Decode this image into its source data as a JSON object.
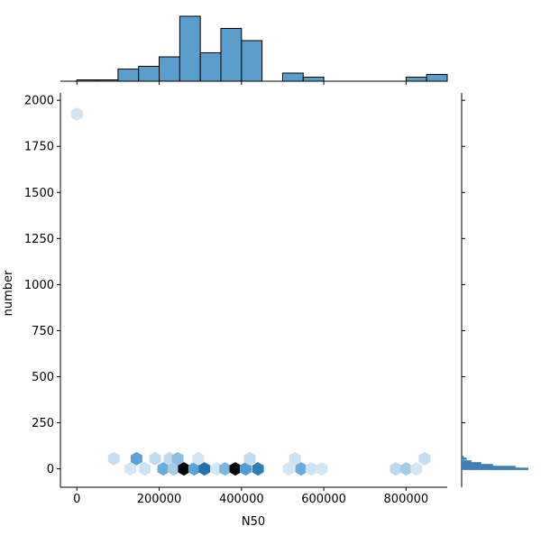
{
  "chart_data": {
    "type": "hexbin-jointplot",
    "xlabel": "N50",
    "ylabel": "number",
    "xlim": [
      -40000,
      900000
    ],
    "ylim": [
      -100,
      2040
    ],
    "x_ticks": [
      0,
      200000,
      400000,
      600000,
      800000
    ],
    "x_tick_labels": [
      "0",
      "200000",
      "400000",
      "600000",
      "800000"
    ],
    "y_ticks": [
      0,
      250,
      500,
      750,
      1000,
      1250,
      1500,
      1750,
      2000
    ],
    "y_tick_labels": [
      "0",
      "250",
      "500",
      "750",
      "1000",
      "1250",
      "1500",
      "1750",
      "2000"
    ],
    "grid": false,
    "hexbins": [
      {
        "x": 0,
        "y": 1925,
        "density": 0.08
      },
      {
        "x": 90000,
        "y": 55,
        "density": 0.12
      },
      {
        "x": 130000,
        "y": 0,
        "density": 0.08
      },
      {
        "x": 145000,
        "y": 55,
        "density": 0.45
      },
      {
        "x": 165000,
        "y": 0,
        "density": 0.1
      },
      {
        "x": 190000,
        "y": 55,
        "density": 0.14
      },
      {
        "x": 210000,
        "y": 0,
        "density": 0.4
      },
      {
        "x": 225000,
        "y": 55,
        "density": 0.14
      },
      {
        "x": 235000,
        "y": 0,
        "density": 0.22
      },
      {
        "x": 245000,
        "y": 55,
        "density": 0.3
      },
      {
        "x": 260000,
        "y": 0,
        "density": 1.0
      },
      {
        "x": 285000,
        "y": 0,
        "density": 0.45
      },
      {
        "x": 295000,
        "y": 55,
        "density": 0.08
      },
      {
        "x": 310000,
        "y": 0,
        "density": 0.88
      },
      {
        "x": 340000,
        "y": 0,
        "density": 0.08
      },
      {
        "x": 360000,
        "y": 0,
        "density": 0.35
      },
      {
        "x": 385000,
        "y": 0,
        "density": 1.0
      },
      {
        "x": 410000,
        "y": 0,
        "density": 0.5
      },
      {
        "x": 420000,
        "y": 55,
        "density": 0.14
      },
      {
        "x": 440000,
        "y": 0,
        "density": 0.78
      },
      {
        "x": 515000,
        "y": 0,
        "density": 0.08
      },
      {
        "x": 530000,
        "y": 55,
        "density": 0.1
      },
      {
        "x": 545000,
        "y": 0,
        "density": 0.4
      },
      {
        "x": 570000,
        "y": 0,
        "density": 0.1
      },
      {
        "x": 595000,
        "y": 0,
        "density": 0.08
      },
      {
        "x": 775000,
        "y": 0,
        "density": 0.16
      },
      {
        "x": 800000,
        "y": 0,
        "density": 0.22
      },
      {
        "x": 825000,
        "y": 0,
        "density": 0.08
      },
      {
        "x": 845000,
        "y": 55,
        "density": 0.12
      }
    ],
    "x_marginal_histogram": {
      "bin_start": 0,
      "bin_width": 50000,
      "counts": [
        1,
        1,
        9,
        11,
        18,
        48,
        21,
        39,
        30,
        0,
        6,
        3,
        0,
        0,
        0,
        0,
        3,
        5
      ]
    },
    "y_marginal_histogram": {
      "bins": [
        {
          "y": 0,
          "count": 68
        },
        {
          "y": 10,
          "count": 55
        },
        {
          "y": 20,
          "count": 32
        },
        {
          "y": 30,
          "count": 20
        },
        {
          "y": 40,
          "count": 10
        },
        {
          "y": 55,
          "count": 5
        },
        {
          "y": 65,
          "count": 2
        }
      ]
    },
    "colors": {
      "bar_fill": "#5b9ecb",
      "bar_edge": "#000000",
      "hex_low": "#eef4fb",
      "hex_mid": "#5ba3d6",
      "hex_high": "#1a6aa8",
      "hex_max": "#000000"
    }
  }
}
